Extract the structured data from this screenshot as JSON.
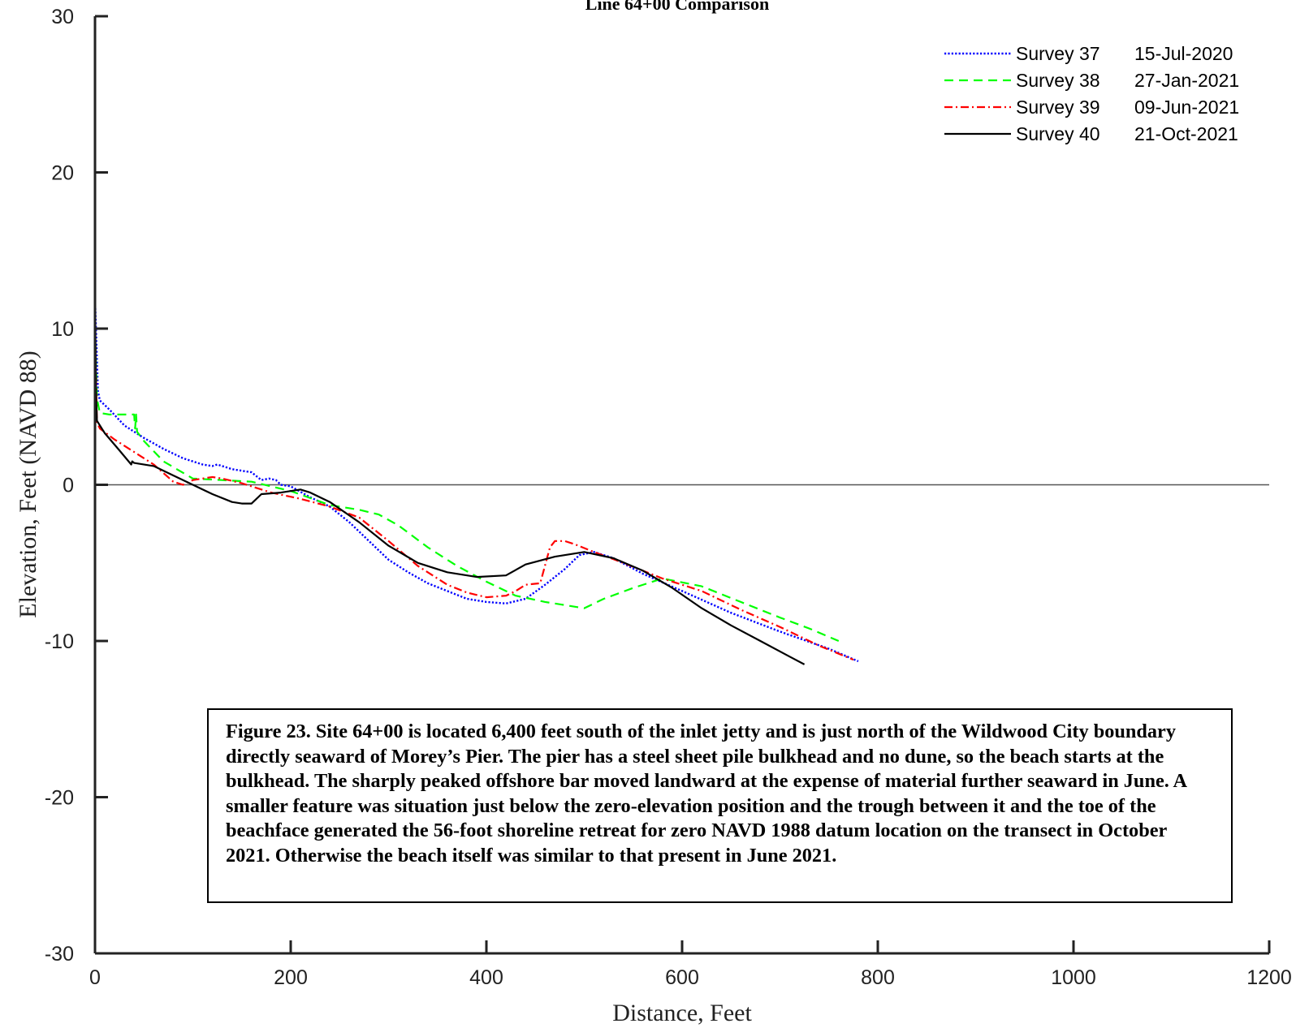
{
  "chart_data": {
    "type": "line",
    "title": "Line 64+00 Comparison",
    "xlabel": "Distance, Feet",
    "ylabel": "Elevation, Feet (NAVD 88)",
    "xlim": [
      0,
      1200
    ],
    "ylim": [
      -30,
      30
    ],
    "xticks": [
      0,
      200,
      400,
      600,
      800,
      1000,
      1200
    ],
    "yticks": [
      -30,
      -20,
      -10,
      0,
      10,
      20,
      30
    ],
    "grid": false,
    "legend_position": "top-right",
    "zero_line": true,
    "series": [
      {
        "name": "Survey  37",
        "date": "15-Jul-2020",
        "color": "#0000ff",
        "dash": "dotted",
        "points": [
          [
            0,
            12
          ],
          [
            3,
            6
          ],
          [
            5,
            5.4
          ],
          [
            15,
            4.8
          ],
          [
            30,
            3.8
          ],
          [
            50,
            3
          ],
          [
            70,
            2.3
          ],
          [
            90,
            1.7
          ],
          [
            110,
            1.3
          ],
          [
            120,
            1.2
          ],
          [
            125,
            1.3
          ],
          [
            130,
            1.2
          ],
          [
            140,
            1
          ],
          [
            150,
            0.9
          ],
          [
            160,
            0.8
          ],
          [
            170,
            0.3
          ],
          [
            178,
            0.4
          ],
          [
            185,
            0.3
          ],
          [
            190,
            0
          ],
          [
            200,
            -0.1
          ],
          [
            220,
            -0.8
          ],
          [
            240,
            -1.4
          ],
          [
            260,
            -2.4
          ],
          [
            280,
            -3.6
          ],
          [
            300,
            -4.8
          ],
          [
            320,
            -5.6
          ],
          [
            340,
            -6.3
          ],
          [
            360,
            -6.8
          ],
          [
            380,
            -7.3
          ],
          [
            400,
            -7.5
          ],
          [
            420,
            -7.6
          ],
          [
            440,
            -7.3
          ],
          [
            460,
            -6.4
          ],
          [
            480,
            -5.4
          ],
          [
            495,
            -4.5
          ],
          [
            510,
            -4.3
          ],
          [
            530,
            -4.7
          ],
          [
            560,
            -5.7
          ],
          [
            600,
            -6.8
          ],
          [
            650,
            -8.2
          ],
          [
            700,
            -9.4
          ],
          [
            750,
            -10.5
          ],
          [
            780,
            -11.3
          ]
        ]
      },
      {
        "name": "Survey  38",
        "date": "27-Jan-2021",
        "color": "#00ff00",
        "dash": "dashed",
        "points": [
          [
            0,
            10
          ],
          [
            2,
            5.5
          ],
          [
            5,
            4.6
          ],
          [
            15,
            4.5
          ],
          [
            40,
            4.5
          ],
          [
            41,
            3.6
          ],
          [
            42,
            4.5
          ],
          [
            43,
            3.4
          ],
          [
            50,
            2.8
          ],
          [
            70,
            1.5
          ],
          [
            100,
            0.4
          ],
          [
            130,
            0.3
          ],
          [
            160,
            0.2
          ],
          [
            200,
            -0.4
          ],
          [
            240,
            -1.3
          ],
          [
            270,
            -1.6
          ],
          [
            290,
            -1.9
          ],
          [
            310,
            -2.6
          ],
          [
            340,
            -4
          ],
          [
            370,
            -5.2
          ],
          [
            400,
            -6.2
          ],
          [
            430,
            -7.1
          ],
          [
            460,
            -7.5
          ],
          [
            500,
            -7.9
          ],
          [
            520,
            -7.3
          ],
          [
            550,
            -6.6
          ],
          [
            580,
            -6
          ],
          [
            620,
            -6.5
          ],
          [
            660,
            -7.5
          ],
          [
            700,
            -8.5
          ],
          [
            730,
            -9.2
          ],
          [
            760,
            -10
          ]
        ]
      },
      {
        "name": "Survey  39",
        "date": "09-Jun-2021",
        "color": "#ff0000",
        "dash": "dashdot",
        "points": [
          [
            0,
            10
          ],
          [
            2,
            4
          ],
          [
            5,
            3.6
          ],
          [
            20,
            2.9
          ],
          [
            40,
            2.1
          ],
          [
            60,
            1.3
          ],
          [
            80,
            0.2
          ],
          [
            90,
            0
          ],
          [
            100,
            0.3
          ],
          [
            110,
            0.4
          ],
          [
            120,
            0.5
          ],
          [
            130,
            0.4
          ],
          [
            150,
            0.1
          ],
          [
            180,
            -0.5
          ],
          [
            210,
            -0.9
          ],
          [
            240,
            -1.4
          ],
          [
            270,
            -2.1
          ],
          [
            300,
            -3.6
          ],
          [
            330,
            -5.2
          ],
          [
            360,
            -6.4
          ],
          [
            380,
            -6.9
          ],
          [
            400,
            -7.2
          ],
          [
            420,
            -7.1
          ],
          [
            430,
            -6.8
          ],
          [
            440,
            -6.4
          ],
          [
            455,
            -6.3
          ],
          [
            465,
            -4
          ],
          [
            470,
            -3.6
          ],
          [
            480,
            -3.6
          ],
          [
            490,
            -3.8
          ],
          [
            510,
            -4.3
          ],
          [
            540,
            -5
          ],
          [
            580,
            -6
          ],
          [
            620,
            -6.8
          ],
          [
            660,
            -8
          ],
          [
            700,
            -9.1
          ],
          [
            740,
            -10.3
          ],
          [
            775,
            -11.2
          ]
        ]
      },
      {
        "name": "Survey  40",
        "date": "21-Oct-2021",
        "color": "#000000",
        "dash": "solid",
        "points": [
          [
            0,
            12.7
          ],
          [
            1,
            6
          ],
          [
            2,
            4.1
          ],
          [
            10,
            3.3
          ],
          [
            25,
            2.2
          ],
          [
            37,
            1.3
          ],
          [
            38,
            1.5
          ],
          [
            40,
            1.4
          ],
          [
            60,
            1.2
          ],
          [
            80,
            0.6
          ],
          [
            100,
            0
          ],
          [
            120,
            -0.6
          ],
          [
            140,
            -1.1
          ],
          [
            150,
            -1.2
          ],
          [
            160,
            -1.2
          ],
          [
            170,
            -0.6
          ],
          [
            190,
            -0.5
          ],
          [
            210,
            -0.3
          ],
          [
            220,
            -0.5
          ],
          [
            240,
            -1.1
          ],
          [
            270,
            -2.4
          ],
          [
            300,
            -3.9
          ],
          [
            330,
            -5
          ],
          [
            360,
            -5.6
          ],
          [
            390,
            -5.9
          ],
          [
            420,
            -5.8
          ],
          [
            440,
            -5.1
          ],
          [
            470,
            -4.6
          ],
          [
            500,
            -4.3
          ],
          [
            530,
            -4.7
          ],
          [
            560,
            -5.5
          ],
          [
            590,
            -6.6
          ],
          [
            620,
            -7.9
          ],
          [
            650,
            -9
          ],
          [
            680,
            -10
          ],
          [
            710,
            -11
          ],
          [
            725,
            -11.5
          ]
        ]
      }
    ]
  },
  "caption": {
    "text": "Figure 23.  Site 64+00 is located 6,400 feet south of the inlet jetty and is just north of the Wildwood City boundary directly seaward of Morey’s Pier.  The pier has a steel sheet pile bulkhead and no dune, so the beach starts at the bulkhead.  The sharply peaked offshore bar moved landward at the expense of material further seaward in June.  A smaller feature was situation just below the zero-elevation position and the trough between it and the toe of the beachface generated the 56-foot shoreline retreat for zero NAVD 1988 datum location on the transect in October 2021.  Otherwise the beach itself was similar to that present in June 2021."
  }
}
